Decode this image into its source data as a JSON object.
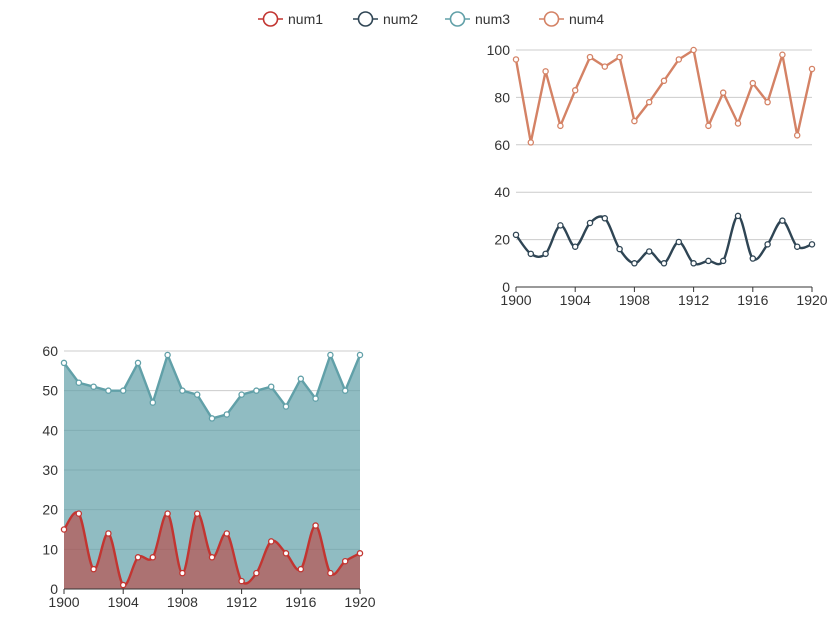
{
  "legend": {
    "items": [
      {
        "name": "num1",
        "color": "#c23531"
      },
      {
        "name": "num2",
        "color": "#2f4554"
      },
      {
        "name": "num3",
        "color": "#61a0a8"
      },
      {
        "name": "num4",
        "color": "#d48265"
      }
    ],
    "placement": "top-center"
  },
  "chart_data": [
    {
      "id": "right",
      "type": "line",
      "x": [
        1900,
        1901,
        1902,
        1903,
        1904,
        1905,
        1906,
        1907,
        1908,
        1909,
        1910,
        1911,
        1912,
        1913,
        1914,
        1915,
        1916,
        1917,
        1918,
        1919,
        1920
      ],
      "xticks": [
        1900,
        1904,
        1908,
        1912,
        1916,
        1920
      ],
      "yticks": [
        0,
        20,
        40,
        60,
        80,
        100
      ],
      "ylim": [
        0,
        100
      ],
      "xlim": [
        1900,
        1920
      ],
      "grid": true,
      "series": [
        {
          "name": "num4",
          "color": "#d48265",
          "smooth": false,
          "area": false,
          "values": [
            96,
            61,
            91,
            68,
            83,
            97,
            93,
            97,
            70,
            78,
            87,
            96,
            100,
            68,
            82,
            69,
            86,
            78,
            98,
            64,
            92
          ]
        },
        {
          "name": "num2",
          "color": "#2f4554",
          "smooth": true,
          "area": false,
          "values": [
            22,
            14,
            14,
            26,
            17,
            27,
            29,
            16,
            10,
            15,
            10,
            19,
            10,
            11,
            11,
            30,
            12,
            18,
            28,
            17,
            18
          ]
        }
      ]
    },
    {
      "id": "left",
      "type": "area",
      "x": [
        1900,
        1901,
        1902,
        1903,
        1904,
        1905,
        1906,
        1907,
        1908,
        1909,
        1910,
        1911,
        1912,
        1913,
        1914,
        1915,
        1916,
        1917,
        1918,
        1919,
        1920
      ],
      "xticks": [
        1900,
        1904,
        1908,
        1912,
        1916,
        1920
      ],
      "yticks": [
        0,
        10,
        20,
        30,
        40,
        50,
        60
      ],
      "ylim": [
        0,
        60
      ],
      "xlim": [
        1900,
        1920
      ],
      "grid": true,
      "series": [
        {
          "name": "num3",
          "color": "#61a0a8",
          "smooth": false,
          "area": true,
          "values": [
            57,
            52,
            51,
            50,
            50,
            57,
            47,
            59,
            50,
            49,
            43,
            44,
            49,
            50,
            51,
            46,
            53,
            48,
            59,
            50,
            59
          ]
        },
        {
          "name": "num1",
          "color": "#c23531",
          "smooth": true,
          "area": true,
          "values": [
            15,
            19,
            5,
            14,
            1,
            8,
            8,
            19,
            4,
            19,
            8,
            14,
            2,
            4,
            12,
            9,
            5,
            16,
            4,
            7,
            9
          ]
        }
      ]
    }
  ]
}
